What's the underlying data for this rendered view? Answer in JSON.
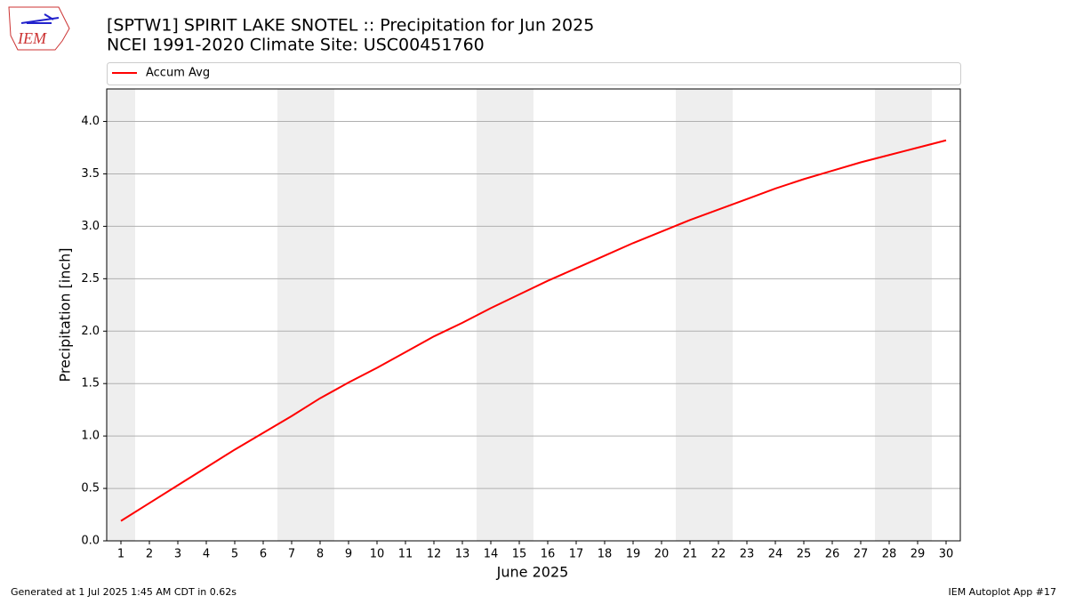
{
  "chart_data": {
    "type": "line",
    "title": "[SPTW1] SPIRIT LAKE SNOTEL :: Precipitation for Jun 2025",
    "subtitle": "NCEI 1991-2020 Climate Site: USC00451760",
    "x_label": "June 2025",
    "y_label": "Precipitation [inch]",
    "x": [
      1,
      2,
      3,
      4,
      5,
      6,
      7,
      8,
      9,
      10,
      11,
      12,
      13,
      14,
      15,
      16,
      17,
      18,
      19,
      20,
      21,
      22,
      23,
      24,
      25,
      26,
      27,
      28,
      29,
      30
    ],
    "series": [
      {
        "name": "Accum Avg",
        "color": "#ff0000",
        "values": [
          0.19,
          0.36,
          0.53,
          0.7,
          0.87,
          1.03,
          1.19,
          1.36,
          1.51,
          1.65,
          1.8,
          1.95,
          2.08,
          2.22,
          2.35,
          2.48,
          2.6,
          2.72,
          2.84,
          2.95,
          3.06,
          3.16,
          3.26,
          3.36,
          3.45,
          3.53,
          3.61,
          3.68,
          3.75,
          3.82
        ]
      }
    ],
    "xlim": [
      0.5,
      30.5
    ],
    "xticks": [
      1,
      2,
      3,
      4,
      5,
      6,
      7,
      8,
      9,
      10,
      11,
      12,
      13,
      14,
      15,
      16,
      17,
      18,
      19,
      20,
      21,
      22,
      23,
      24,
      25,
      26,
      27,
      28,
      29,
      30
    ],
    "ylim": [
      0,
      4.31
    ],
    "yticks": [
      {
        "value": 0,
        "label": "0.0"
      },
      {
        "value": 0.5,
        "label": "0.5"
      },
      {
        "value": 1,
        "label": "1.0"
      },
      {
        "value": 1.5,
        "label": "1.5"
      },
      {
        "value": 2,
        "label": "2.0"
      },
      {
        "value": 2.5,
        "label": "2.5"
      },
      {
        "value": 3,
        "label": "3.0"
      },
      {
        "value": 3.5,
        "label": "3.5"
      },
      {
        "value": 4,
        "label": "4.0"
      }
    ],
    "grid": true,
    "shaded_days": [
      1,
      7,
      8,
      14,
      15,
      21,
      22,
      28,
      29
    ],
    "shade_color": "#eeeeee",
    "legend": "top"
  },
  "logo": "IEM",
  "footer_left": "Generated at 1 Jul 2025 1:45 AM CDT in 0.62s",
  "footer_right": "IEM Autoplot App #17"
}
